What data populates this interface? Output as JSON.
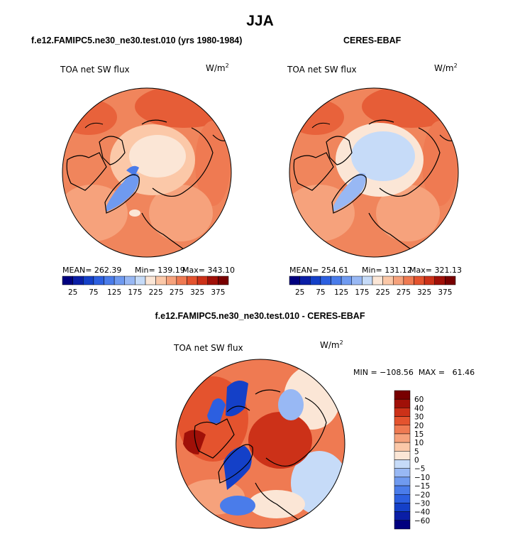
{
  "title": "JJA",
  "panels": [
    {
      "title": "f.e12.FAMIPC5.ne30_ne30.test.010 (yrs 1980-1984)",
      "variable": "TOA net SW flux",
      "units": "W/m",
      "units_sup": "2",
      "stats": {
        "mean": "MEAN= 262.39",
        "min": "Min= 139.19",
        "max": "Max= 343.10"
      }
    },
    {
      "title": "CERES-EBAF",
      "variable": "TOA net SW flux",
      "units": "W/m",
      "units_sup": "2",
      "stats": {
        "mean": "MEAN= 254.61",
        "min": "Min= 131.12",
        "max": "Max= 321.13"
      }
    },
    {
      "title": "f.e12.FAMIPC5.ne30_ne30.test.010 - CERES-EBAF",
      "variable": "TOA net SW flux",
      "units": "W/m",
      "units_sup": "2",
      "stats": {
        "minmax": "MIN = −108.56  MAX =   61.46"
      }
    }
  ],
  "chart_data": [
    {
      "type": "heatmap",
      "projection": "north polar stereographic",
      "title": "f.e12.FAMIPC5.ne30_ne30.test.010 (yrs 1980-1984)",
      "variable": "TOA net SW flux",
      "units": "W/m2",
      "mean": 262.39,
      "min": 139.19,
      "max": 343.1,
      "colorbar": {
        "levels": [
          25,
          50,
          75,
          100,
          125,
          150,
          175,
          200,
          225,
          250,
          275,
          300,
          325,
          350,
          375
        ],
        "tick_labels": [
          "25",
          "75",
          "125",
          "175",
          "225",
          "275",
          "325",
          "375"
        ],
        "colors": [
          "#00007f",
          "#0a1ea6",
          "#1440c8",
          "#2c5fe0",
          "#4a7cea",
          "#6f9af0",
          "#98b8f4",
          "#c6dbf8",
          "#fbe6d6",
          "#fbc8a8",
          "#f6a27c",
          "#ef7a52",
          "#e4532e",
          "#cc3118",
          "#a01008",
          "#780000"
        ],
        "orientation": "horizontal"
      }
    },
    {
      "type": "heatmap",
      "projection": "north polar stereographic",
      "title": "CERES-EBAF",
      "variable": "TOA net SW flux",
      "units": "W/m2",
      "mean": 254.61,
      "min": 131.12,
      "max": 321.13,
      "colorbar": {
        "levels": [
          25,
          50,
          75,
          100,
          125,
          150,
          175,
          200,
          225,
          250,
          275,
          300,
          325,
          350,
          375
        ],
        "tick_labels": [
          "25",
          "75",
          "125",
          "175",
          "225",
          "275",
          "325",
          "375"
        ],
        "colors": [
          "#00007f",
          "#0a1ea6",
          "#1440c8",
          "#2c5fe0",
          "#4a7cea",
          "#6f9af0",
          "#98b8f4",
          "#c6dbf8",
          "#fbe6d6",
          "#fbc8a8",
          "#f6a27c",
          "#ef7a52",
          "#e4532e",
          "#cc3118",
          "#a01008",
          "#780000"
        ],
        "orientation": "horizontal"
      }
    },
    {
      "type": "heatmap",
      "projection": "north polar stereographic",
      "title": "f.e12.FAMIPC5.ne30_ne30.test.010 - CERES-EBAF",
      "variable": "TOA net SW flux",
      "units": "W/m2",
      "min": -108.56,
      "max": 61.46,
      "colorbar": {
        "levels": [
          -60,
          -40,
          -30,
          -20,
          -15,
          -10,
          -5,
          0,
          5,
          10,
          15,
          20,
          30,
          40,
          60
        ],
        "tick_labels": [
          "60",
          "40",
          "30",
          "20",
          "15",
          "10",
          "5",
          "0",
          "−5",
          "−10",
          "−15",
          "−20",
          "−30",
          "−40",
          "−60"
        ],
        "colors": [
          "#00007f",
          "#0a1ea6",
          "#1440c8",
          "#2c5fe0",
          "#4a7cea",
          "#6f9af0",
          "#98b8f4",
          "#c6dbf8",
          "#fbe6d6",
          "#fbc8a8",
          "#f6a27c",
          "#ef7a52",
          "#e4532e",
          "#cc3118",
          "#a01008",
          "#780000"
        ],
        "orientation": "vertical"
      }
    }
  ]
}
